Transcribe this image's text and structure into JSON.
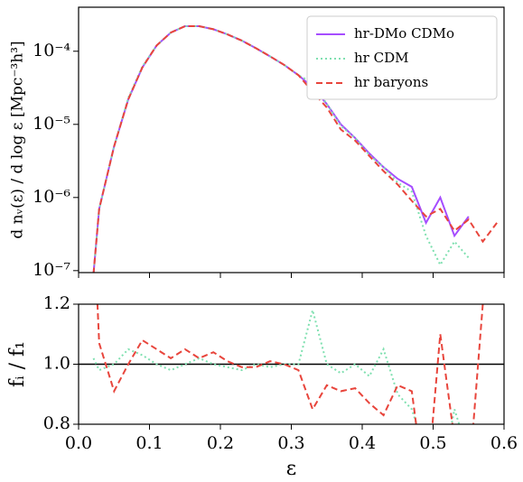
{
  "chart_data": [
    {
      "type": "line",
      "ylabel": "d nᵥ(ε) / d log ε [Mpc⁻³h³]",
      "ylog": true,
      "xlim": [
        0.0,
        0.6
      ],
      "ylim": [
        9.4e-08,
        0.0004
      ],
      "yticks": [
        {
          "value": 1e-07,
          "label": "10⁻⁷"
        },
        {
          "value": 1e-06,
          "label": "10⁻⁶"
        },
        {
          "value": 1e-05,
          "label": "10⁻⁵"
        },
        {
          "value": 0.0001,
          "label": "10⁻⁴"
        }
      ],
      "legend": "upper right",
      "x": [
        0.021,
        0.029,
        0.05,
        0.07,
        0.09,
        0.11,
        0.13,
        0.15,
        0.17,
        0.19,
        0.21,
        0.23,
        0.25,
        0.27,
        0.29,
        0.31,
        0.33,
        0.35,
        0.37,
        0.39,
        0.41,
        0.43,
        0.45,
        0.47,
        0.49,
        0.51,
        0.53,
        0.55,
        0.57,
        0.59
      ],
      "series": [
        {
          "name": "hr-DMo CDMo",
          "color": "#a64dff",
          "style": "solid",
          "values": [
            9e-08,
            7e-07,
            5e-06,
            2.2e-05,
            6e-05,
            0.00012,
            0.00018,
            0.00022,
            0.00022,
            0.0002,
            0.00017,
            0.00014,
            0.00011,
            8.5e-05,
            6.5e-05,
            4.7e-05,
            3.2e-05,
            1.9e-05,
            1e-05,
            6.5e-06,
            4e-06,
            2.6e-06,
            1.8e-06,
            1.4e-06,
            4.5e-07,
            1e-06,
            3e-07,
            5.5e-07,
            null,
            null
          ]
        },
        {
          "name": "hr CDM",
          "color": "#7fe0b0",
          "style": "dotted",
          "values": [
            9e-08,
            7e-07,
            5e-06,
            2.3e-05,
            6.2e-05,
            0.00012,
            0.00018,
            0.00022,
            0.00022,
            0.0002,
            0.00017,
            0.00014,
            0.00011,
            8.5e-05,
            6.5e-05,
            4.7e-05,
            3.7e-05,
            1.9e-05,
            9.5e-06,
            6.5e-06,
            3.8e-06,
            2.6e-06,
            1.6e-06,
            1.2e-06,
            3e-07,
            1.2e-07,
            2.5e-07,
            1.5e-07,
            null,
            null
          ]
        },
        {
          "name": "hr baryons",
          "color": "#e8453c",
          "style": "dashed",
          "values": [
            9e-08,
            7e-07,
            5e-06,
            2.2e-05,
            6e-05,
            0.00012,
            0.00018,
            0.00022,
            0.00022,
            0.0002,
            0.00017,
            0.00014,
            0.00011,
            8.5e-05,
            6.5e-05,
            4.7e-05,
            2.8e-05,
            1.7e-05,
            8.5e-06,
            6e-06,
            3.7e-06,
            2.3e-06,
            1.5e-06,
            9e-07,
            5.5e-07,
            7e-07,
            3.5e-07,
            5e-07,
            2.5e-07,
            4.5e-07
          ]
        }
      ]
    },
    {
      "type": "line",
      "xlabel": "ε",
      "ylabel": "fᵢ / f₁",
      "xlim": [
        0.0,
        0.6
      ],
      "ylim": [
        0.8,
        1.2
      ],
      "xticks": [
        {
          "value": 0,
          "label": "0.0"
        },
        0.1,
        0.2,
        0.3,
        0.4,
        0.5,
        0.6
      ],
      "yticks": [
        0.8,
        {
          "value": 1,
          "label": "1.0"
        },
        1.2
      ],
      "hline": 1,
      "x": [
        0.021,
        0.029,
        0.05,
        0.07,
        0.09,
        0.11,
        0.13,
        0.15,
        0.17,
        0.19,
        0.21,
        0.23,
        0.25,
        0.27,
        0.29,
        0.31,
        0.33,
        0.35,
        0.37,
        0.39,
        0.41,
        0.43,
        0.45,
        0.47,
        0.49,
        0.51,
        0.53,
        0.55,
        0.57,
        0.59
      ],
      "series": [
        {
          "name": "hr CDM",
          "color": "#7fe0b0",
          "style": "dotted",
          "values": [
            1.02,
            0.98,
            1.0,
            1.05,
            1.03,
            1.0,
            0.98,
            1.0,
            1.02,
            1.0,
            0.99,
            0.98,
            1.0,
            0.99,
            1.0,
            1.0,
            1.18,
            1.0,
            0.97,
            1.0,
            0.96,
            1.05,
            0.9,
            0.85,
            0.7,
            0.6,
            0.85,
            0.7,
            null,
            null
          ]
        },
        {
          "name": "hr baryons",
          "color": "#e8453c",
          "style": "dashed",
          "values": [
            1.5,
            1.07,
            0.91,
            1.0,
            1.08,
            1.05,
            1.02,
            1.05,
            1.02,
            1.04,
            1.01,
            0.99,
            0.99,
            1.01,
            1.0,
            0.98,
            0.85,
            0.93,
            0.91,
            0.92,
            0.87,
            0.83,
            0.93,
            0.91,
            0.55,
            1.1,
            0.75,
            0.6,
            1.2,
            1.3
          ]
        }
      ]
    }
  ]
}
